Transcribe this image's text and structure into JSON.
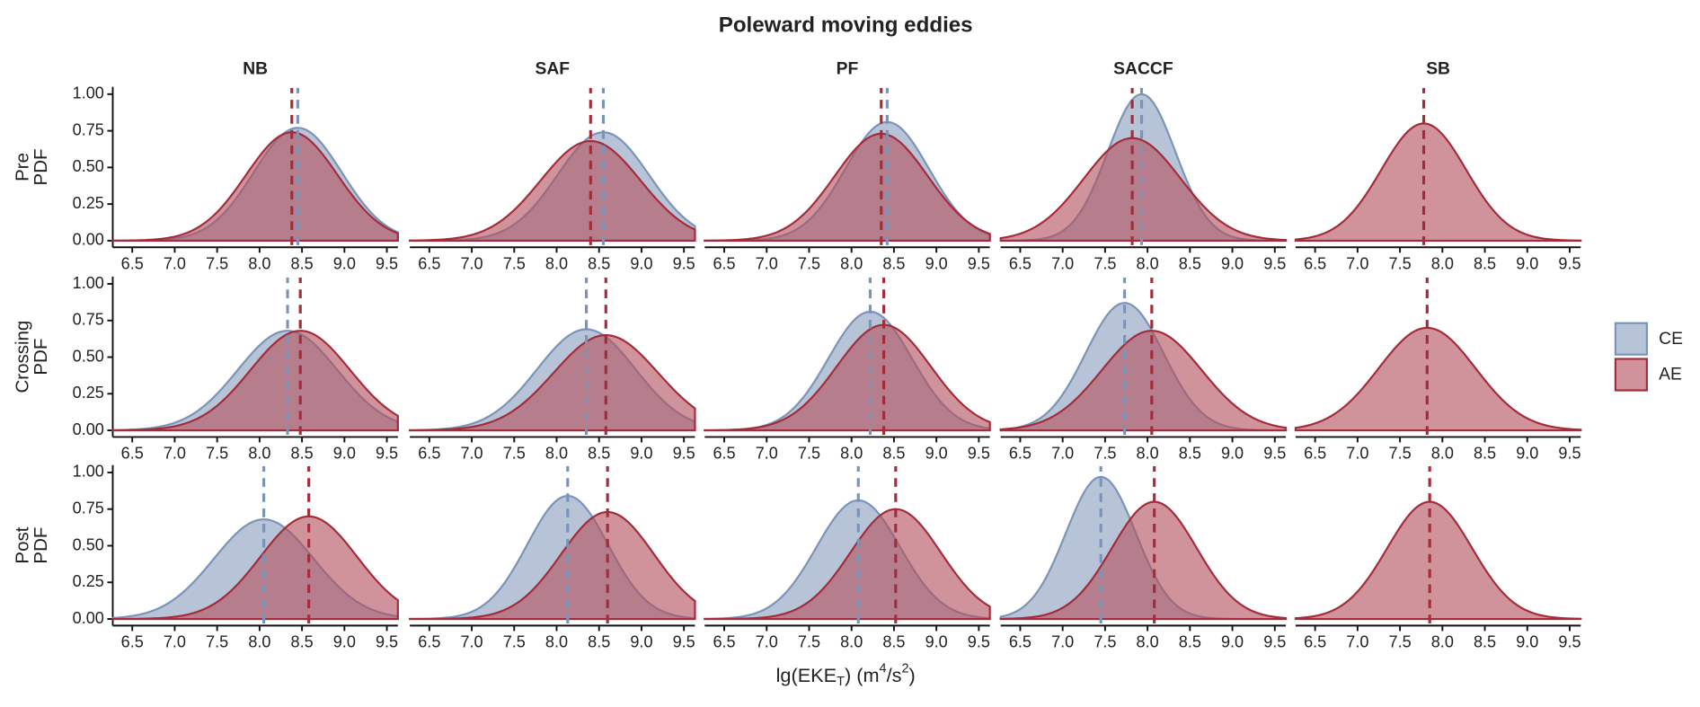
{
  "chart_data": {
    "type": "density",
    "title": "Poleward moving eddies",
    "columns": [
      "NB",
      "SAF",
      "PF",
      "SACCF",
      "SB"
    ],
    "rows": [
      "Pre",
      "Crossing",
      "Post"
    ],
    "y_label": "PDF",
    "x_label_parts": [
      "lg(EKE",
      "T",
      ")   (m",
      "4",
      "/s",
      "2",
      ")"
    ],
    "xlim": [
      6.27,
      9.63
    ],
    "xticks": [
      6.5,
      {
        "value": 7,
        "label": "7.0"
      },
      7.5,
      {
        "value": 8,
        "label": "8.0"
      },
      8.5,
      {
        "value": 9,
        "label": "9.0"
      },
      9.5
    ],
    "ylim": [
      -0.045,
      1.05
    ],
    "yticks": [
      {
        "value": 0,
        "label": "0.00"
      },
      {
        "value": 0.25,
        "label": "0.25"
      },
      {
        "value": 0.5,
        "label": "0.50"
      },
      {
        "value": 0.75,
        "label": "0.75"
      },
      {
        "value": 1,
        "label": "1.00"
      }
    ],
    "legend": [
      {
        "name": "CE",
        "color": "#8a9fbf",
        "line_color": "#7a93b8"
      },
      {
        "name": "AE",
        "color": "#b4505d",
        "line_color": "#a42b3a"
      }
    ],
    "panels": [
      [
        [
          {
            "mean": 8.45,
            "peak": 0.77
          },
          {
            "mean": 8.38,
            "peak": 0.74
          }
        ],
        [
          {
            "mean": 8.55,
            "peak": 0.74
          },
          {
            "mean": 8.4,
            "peak": 0.68
          }
        ],
        [
          {
            "mean": 8.42,
            "peak": 0.81
          },
          {
            "mean": 8.35,
            "peak": 0.73
          }
        ],
        [
          {
            "mean": 7.93,
            "peak": 1.0
          },
          {
            "mean": 7.82,
            "peak": 0.7
          }
        ],
        [
          null,
          {
            "mean": 7.78,
            "peak": 0.8
          }
        ]
      ],
      [
        [
          {
            "mean": 8.33,
            "peak": 0.68
          },
          {
            "mean": 8.48,
            "peak": 0.68
          }
        ],
        [
          {
            "mean": 8.35,
            "peak": 0.69
          },
          {
            "mean": 8.58,
            "peak": 0.65
          }
        ],
        [
          {
            "mean": 8.22,
            "peak": 0.81
          },
          {
            "mean": 8.38,
            "peak": 0.72
          }
        ],
        [
          {
            "mean": 7.73,
            "peak": 0.87
          },
          {
            "mean": 8.05,
            "peak": 0.68
          }
        ],
        [
          null,
          {
            "mean": 7.82,
            "peak": 0.7
          }
        ]
      ],
      [
        [
          {
            "mean": 8.05,
            "peak": 0.68
          },
          {
            "mean": 8.58,
            "peak": 0.7
          }
        ],
        [
          {
            "mean": 8.13,
            "peak": 0.84
          },
          {
            "mean": 8.6,
            "peak": 0.73
          }
        ],
        [
          {
            "mean": 8.08,
            "peak": 0.81
          },
          {
            "mean": 8.52,
            "peak": 0.75
          }
        ],
        [
          {
            "mean": 7.45,
            "peak": 0.97
          },
          {
            "mean": 8.08,
            "peak": 0.8
          }
        ],
        [
          null,
          {
            "mean": 7.85,
            "peak": 0.8
          }
        ]
      ]
    ]
  }
}
